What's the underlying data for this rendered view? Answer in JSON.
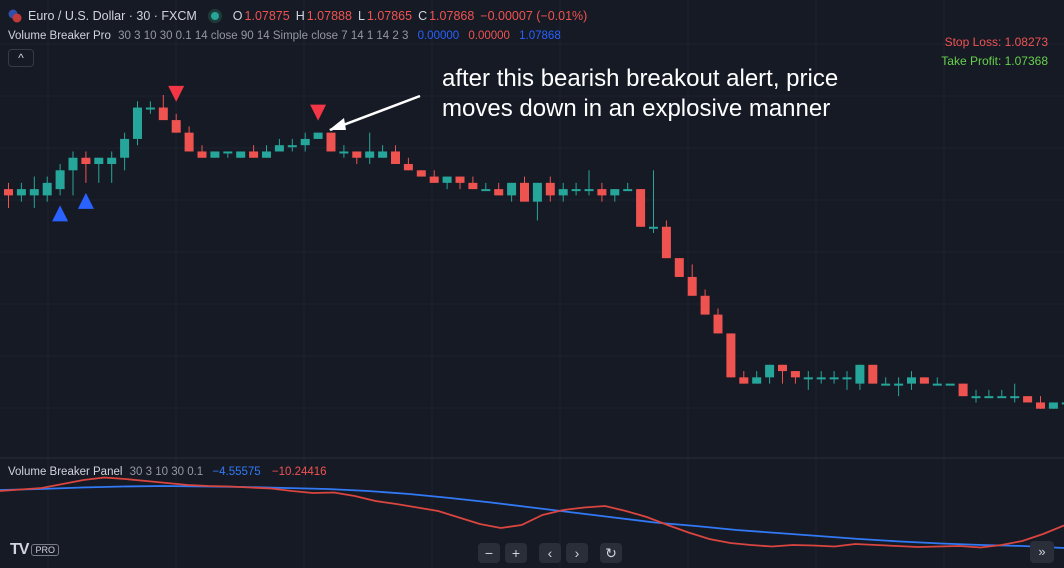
{
  "header": {
    "symbol": "Euro / U.S. Dollar · 30 · FXCM",
    "o_label": "O",
    "o_value": "1.07875",
    "h_label": "H",
    "h_value": "1.07888",
    "l_label": "L",
    "l_value": "1.07865",
    "c_label": "C",
    "c_value": "1.07868",
    "change": "−0.00007 (−0.01%)"
  },
  "indicator": {
    "name": "Volume Breaker Pro",
    "params": "30 3 10 30 0.1 14 close 90 14 Simple close 7 14 1 14 2 3",
    "v1": "0.00000",
    "v2": "0.00000",
    "v3": "1.07868",
    "collapse_icon": "^"
  },
  "levels": {
    "stop_loss": "Stop Loss: 1.08273",
    "take_profit": "Take Profit: 1.07368"
  },
  "annotation": {
    "line1": "after this bearish breakout alert, price",
    "line2": "moves down in an explosive manner"
  },
  "panel": {
    "name": "Volume Breaker Panel",
    "params": "30 3 10 30 0.1",
    "v1": "−4.55575",
    "v2": "−10.24416"
  },
  "logo": {
    "text": "TV",
    "badge": "PRO"
  },
  "nav": {
    "zoom_out": "−",
    "zoom_in": "+",
    "back": "‹",
    "forward": "›",
    "reset": "↻",
    "to_end": "»"
  },
  "colors": {
    "up": "#26a69a",
    "down": "#ef5350",
    "signal_up": "#2962ff",
    "signal_down": "#f23645",
    "panel_blue": "#3179f5",
    "panel_red": "#d9453f",
    "panel_green": "#49a35b"
  },
  "chart_data": {
    "type": "candlestick",
    "ylim": [
      1.07368,
      1.08273
    ],
    "candles": [
      {
        "o": 1.0807,
        "h": 1.0808,
        "l": 1.0804,
        "c": 1.0806
      },
      {
        "o": 1.0806,
        "h": 1.0808,
        "l": 1.0805,
        "c": 1.0807
      },
      {
        "o": 1.0806,
        "h": 1.0809,
        "l": 1.0804,
        "c": 1.0807
      },
      {
        "o": 1.0806,
        "h": 1.0809,
        "l": 1.0805,
        "c": 1.0808
      },
      {
        "o": 1.0807,
        "h": 1.0811,
        "l": 1.0806,
        "c": 1.081
      },
      {
        "o": 1.081,
        "h": 1.0813,
        "l": 1.0806,
        "c": 1.0812
      },
      {
        "o": 1.0812,
        "h": 1.0813,
        "l": 1.0808,
        "c": 1.0811
      },
      {
        "o": 1.0811,
        "h": 1.0812,
        "l": 1.0808,
        "c": 1.0812
      },
      {
        "o": 1.0811,
        "h": 1.0813,
        "l": 1.0808,
        "c": 1.0812
      },
      {
        "o": 1.0812,
        "h": 1.0816,
        "l": 1.081,
        "c": 1.0815
      },
      {
        "o": 1.0815,
        "h": 1.0821,
        "l": 1.0814,
        "c": 1.082
      },
      {
        "o": 1.082,
        "h": 1.0821,
        "l": 1.0819,
        "c": 1.082
      },
      {
        "o": 1.082,
        "h": 1.0822,
        "l": 1.0818,
        "c": 1.0818
      },
      {
        "o": 1.0818,
        "h": 1.0819,
        "l": 1.0816,
        "c": 1.0816
      },
      {
        "o": 1.0816,
        "h": 1.0817,
        "l": 1.0813,
        "c": 1.0813
      },
      {
        "o": 1.0813,
        "h": 1.0814,
        "l": 1.0812,
        "c": 1.0812
      },
      {
        "o": 1.0812,
        "h": 1.0813,
        "l": 1.0812,
        "c": 1.0813
      },
      {
        "o": 1.0813,
        "h": 1.0813,
        "l": 1.0812,
        "c": 1.0813
      },
      {
        "o": 1.0812,
        "h": 1.0813,
        "l": 1.0812,
        "c": 1.0813
      },
      {
        "o": 1.0813,
        "h": 1.0814,
        "l": 1.0812,
        "c": 1.0812
      },
      {
        "o": 1.0812,
        "h": 1.0814,
        "l": 1.0812,
        "c": 1.0813
      },
      {
        "o": 1.0813,
        "h": 1.0815,
        "l": 1.0813,
        "c": 1.0814
      },
      {
        "o": 1.0814,
        "h": 1.0815,
        "l": 1.0813,
        "c": 1.0814
      },
      {
        "o": 1.0814,
        "h": 1.0816,
        "l": 1.0813,
        "c": 1.0815
      },
      {
        "o": 1.0815,
        "h": 1.0816,
        "l": 1.0815,
        "c": 1.0816
      },
      {
        "o": 1.0816,
        "h": 1.0816,
        "l": 1.0813,
        "c": 1.0813
      },
      {
        "o": 1.0813,
        "h": 1.0814,
        "l": 1.0812,
        "c": 1.0813
      },
      {
        "o": 1.0813,
        "h": 1.0813,
        "l": 1.0811,
        "c": 1.0812
      },
      {
        "o": 1.0812,
        "h": 1.0816,
        "l": 1.0811,
        "c": 1.0813
      },
      {
        "o": 1.0812,
        "h": 1.0814,
        "l": 1.0812,
        "c": 1.0813
      },
      {
        "o": 1.0813,
        "h": 1.0814,
        "l": 1.0811,
        "c": 1.0811
      },
      {
        "o": 1.0811,
        "h": 1.0812,
        "l": 1.081,
        "c": 1.081
      },
      {
        "o": 1.081,
        "h": 1.081,
        "l": 1.0809,
        "c": 1.0809
      },
      {
        "o": 1.0809,
        "h": 1.081,
        "l": 1.0808,
        "c": 1.0808
      },
      {
        "o": 1.0808,
        "h": 1.0809,
        "l": 1.0807,
        "c": 1.0809
      },
      {
        "o": 1.0809,
        "h": 1.0809,
        "l": 1.0807,
        "c": 1.0808
      },
      {
        "o": 1.0808,
        "h": 1.0809,
        "l": 1.0807,
        "c": 1.0807
      },
      {
        "o": 1.0807,
        "h": 1.0808,
        "l": 1.0807,
        "c": 1.0807
      },
      {
        "o": 1.0807,
        "h": 1.0808,
        "l": 1.0806,
        "c": 1.0806
      },
      {
        "o": 1.0806,
        "h": 1.0808,
        "l": 1.0805,
        "c": 1.0808
      },
      {
        "o": 1.0808,
        "h": 1.0809,
        "l": 1.0805,
        "c": 1.0805
      },
      {
        "o": 1.0805,
        "h": 1.0808,
        "l": 1.0802,
        "c": 1.0808
      },
      {
        "o": 1.0808,
        "h": 1.0809,
        "l": 1.0805,
        "c": 1.0806
      },
      {
        "o": 1.0806,
        "h": 1.0808,
        "l": 1.0805,
        "c": 1.0807
      },
      {
        "o": 1.0807,
        "h": 1.0808,
        "l": 1.0806,
        "c": 1.0807
      },
      {
        "o": 1.0807,
        "h": 1.081,
        "l": 1.0806,
        "c": 1.0807
      },
      {
        "o": 1.0807,
        "h": 1.0808,
        "l": 1.0805,
        "c": 1.0806
      },
      {
        "o": 1.0806,
        "h": 1.0807,
        "l": 1.0805,
        "c": 1.0807
      },
      {
        "o": 1.0807,
        "h": 1.0808,
        "l": 1.0807,
        "c": 1.0807
      },
      {
        "o": 1.0807,
        "h": 1.0807,
        "l": 1.0801,
        "c": 1.0801
      },
      {
        "o": 1.0801,
        "h": 1.081,
        "l": 1.08,
        "c": 1.0801
      },
      {
        "o": 1.0801,
        "h": 1.0802,
        "l": 1.0796,
        "c": 1.0796
      },
      {
        "o": 1.0796,
        "h": 1.0796,
        "l": 1.0793,
        "c": 1.0793
      },
      {
        "o": 1.0793,
        "h": 1.0795,
        "l": 1.079,
        "c": 1.079
      },
      {
        "o": 1.079,
        "h": 1.0791,
        "l": 1.0787,
        "c": 1.0787
      },
      {
        "o": 1.0787,
        "h": 1.0788,
        "l": 1.0784,
        "c": 1.0784
      },
      {
        "o": 1.0784,
        "h": 1.0784,
        "l": 1.0777,
        "c": 1.0777
      },
      {
        "o": 1.0777,
        "h": 1.0778,
        "l": 1.0776,
        "c": 1.0776
      },
      {
        "o": 1.0776,
        "h": 1.0778,
        "l": 1.0776,
        "c": 1.0777
      },
      {
        "o": 1.0777,
        "h": 1.0779,
        "l": 1.0776,
        "c": 1.0779
      },
      {
        "o": 1.0779,
        "h": 1.0779,
        "l": 1.0776,
        "c": 1.0778
      },
      {
        "o": 1.0778,
        "h": 1.0778,
        "l": 1.0776,
        "c": 1.0777
      },
      {
        "o": 1.0777,
        "h": 1.0778,
        "l": 1.0775,
        "c": 1.0777
      },
      {
        "o": 1.0777,
        "h": 1.0778,
        "l": 1.0776,
        "c": 1.0777
      },
      {
        "o": 1.0777,
        "h": 1.0778,
        "l": 1.0776,
        "c": 1.0777
      },
      {
        "o": 1.0777,
        "h": 1.0778,
        "l": 1.0775,
        "c": 1.0777
      },
      {
        "o": 1.0776,
        "h": 1.0779,
        "l": 1.0775,
        "c": 1.0779
      },
      {
        "o": 1.0779,
        "h": 1.0779,
        "l": 1.0776,
        "c": 1.0776
      },
      {
        "o": 1.0776,
        "h": 1.0777,
        "l": 1.0776,
        "c": 1.0776
      },
      {
        "o": 1.0776,
        "h": 1.0777,
        "l": 1.0774,
        "c": 1.0776
      },
      {
        "o": 1.0776,
        "h": 1.0778,
        "l": 1.0775,
        "c": 1.0777
      },
      {
        "o": 1.0777,
        "h": 1.0777,
        "l": 1.0776,
        "c": 1.0776
      },
      {
        "o": 1.0776,
        "h": 1.0777,
        "l": 1.0776,
        "c": 1.0776
      },
      {
        "o": 1.0776,
        "h": 1.0776,
        "l": 1.0776,
        "c": 1.0776
      },
      {
        "o": 1.0776,
        "h": 1.0776,
        "l": 1.0774,
        "c": 1.0774
      },
      {
        "o": 1.0774,
        "h": 1.0775,
        "l": 1.0773,
        "c": 1.0774
      },
      {
        "o": 1.0774,
        "h": 1.0775,
        "l": 1.0774,
        "c": 1.0774
      },
      {
        "o": 1.0774,
        "h": 1.0775,
        "l": 1.0774,
        "c": 1.0774
      },
      {
        "o": 1.0774,
        "h": 1.0776,
        "l": 1.0773,
        "c": 1.0774
      },
      {
        "o": 1.0774,
        "h": 1.0774,
        "l": 1.0773,
        "c": 1.0773
      },
      {
        "o": 1.0773,
        "h": 1.0774,
        "l": 1.0772,
        "c": 1.0772
      },
      {
        "o": 1.0772,
        "h": 1.0773,
        "l": 1.0772,
        "c": 1.0773
      },
      {
        "o": 1.0773,
        "h": 1.0774,
        "l": 1.0773,
        "c": 1.0773
      },
      {
        "o": 1.0773,
        "h": 1.0774,
        "l": 1.0773,
        "c": 1.0774
      },
      {
        "o": 1.0774,
        "h": 1.0774,
        "l": 1.0773,
        "c": 1.0773
      },
      {
        "o": 1.0773,
        "h": 1.0774,
        "l": 1.0772,
        "c": 1.0774
      }
    ],
    "signals": [
      {
        "type": "bull",
        "index": 4
      },
      {
        "type": "bull",
        "index": 6
      },
      {
        "type": "bear",
        "index": 13
      },
      {
        "type": "bear",
        "index": 24
      }
    ],
    "panel_series": [
      {
        "values": [
          0.38,
          0.41,
          0.44,
          0.52,
          0.6,
          0.65,
          0.62,
          0.58,
          0.54,
          0.5,
          0.48,
          0.47,
          0.45,
          0.43,
          0.38,
          0.34,
          0.35,
          0.28,
          0.18,
          0.12,
          0.05,
          -0.02,
          -0.15,
          -0.28,
          -0.36,
          -0.3,
          -0.1,
          0.0,
          0.05,
          0.08,
          -0.02,
          -0.14,
          -0.3,
          -0.45,
          -0.58,
          -0.66,
          -0.7,
          -0.73,
          -0.7,
          -0.71,
          -0.73,
          -0.68,
          -0.7,
          -0.72,
          -0.74,
          -0.73,
          -0.72,
          -0.75,
          -0.7,
          -0.62,
          -0.48,
          -0.31
        ]
      },
      {
        "values": [
          0.4,
          0.42,
          0.45,
          0.47,
          0.48,
          0.47,
          0.46,
          0.44,
          0.42,
          0.38,
          0.32,
          0.24,
          0.15,
          0.05,
          -0.05,
          -0.15,
          -0.25,
          -0.32,
          -0.4,
          -0.46,
          -0.52,
          -0.58,
          -0.63,
          -0.67,
          -0.7,
          -0.72,
          -0.76
        ]
      }
    ]
  }
}
